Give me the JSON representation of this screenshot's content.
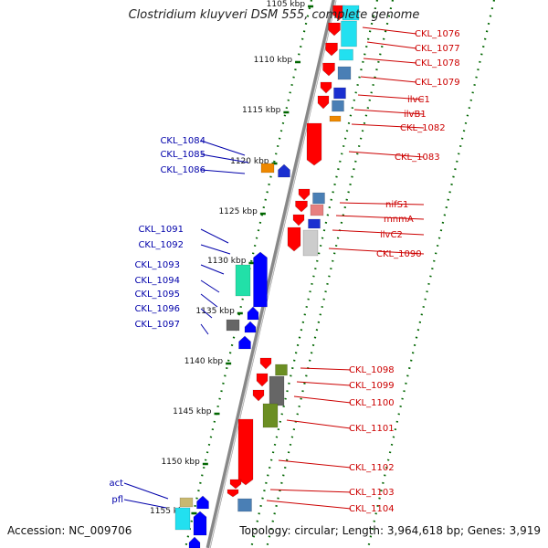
{
  "title": "Clostridium kluyveri DSM 555, complete genome",
  "footer": {
    "accession": "Accession: NC_009706",
    "summary": "Topology: circular; Length: 3,964,618 bp; Genes: 3,919"
  },
  "colors": {
    "forward_label": "#cc0000",
    "reverse_label": "#0000aa",
    "forward_strand": "#ff0000",
    "reverse_strand": "#0000ff",
    "tick": "#006600",
    "backbone": "#888888"
  },
  "scale_ticks": [
    "1105 kbp",
    "1110 kbp",
    "1115 kbp",
    "1120 kbp",
    "1125 kbp",
    "1130 kbp",
    "1135 kbp",
    "1140 kbp",
    "1145 kbp",
    "1150 kbp",
    "1155 kbp"
  ],
  "right_genes": [
    "CKL_1076",
    "CKL_1077",
    "CKL_1078",
    "CKL_1079",
    "ilvC1",
    "ilvB1",
    "CKL_1082",
    "CKL_1083",
    "nifS1",
    "mnmA",
    "ilvC2",
    "CKL_1090",
    "CKL_1098",
    "CKL_1099",
    "CKL_1100",
    "CKL_1101",
    "CKL_1102",
    "CKL_1103",
    "CKL_1104"
  ],
  "left_genes": [
    "CKL_1084",
    "CKL_1085",
    "CKL_1086",
    "CKL_1091",
    "CKL_1092",
    "CKL_1093",
    "CKL_1094",
    "CKL_1095",
    "CKL_1096",
    "CKL_1097",
    "act",
    "pfl"
  ]
}
